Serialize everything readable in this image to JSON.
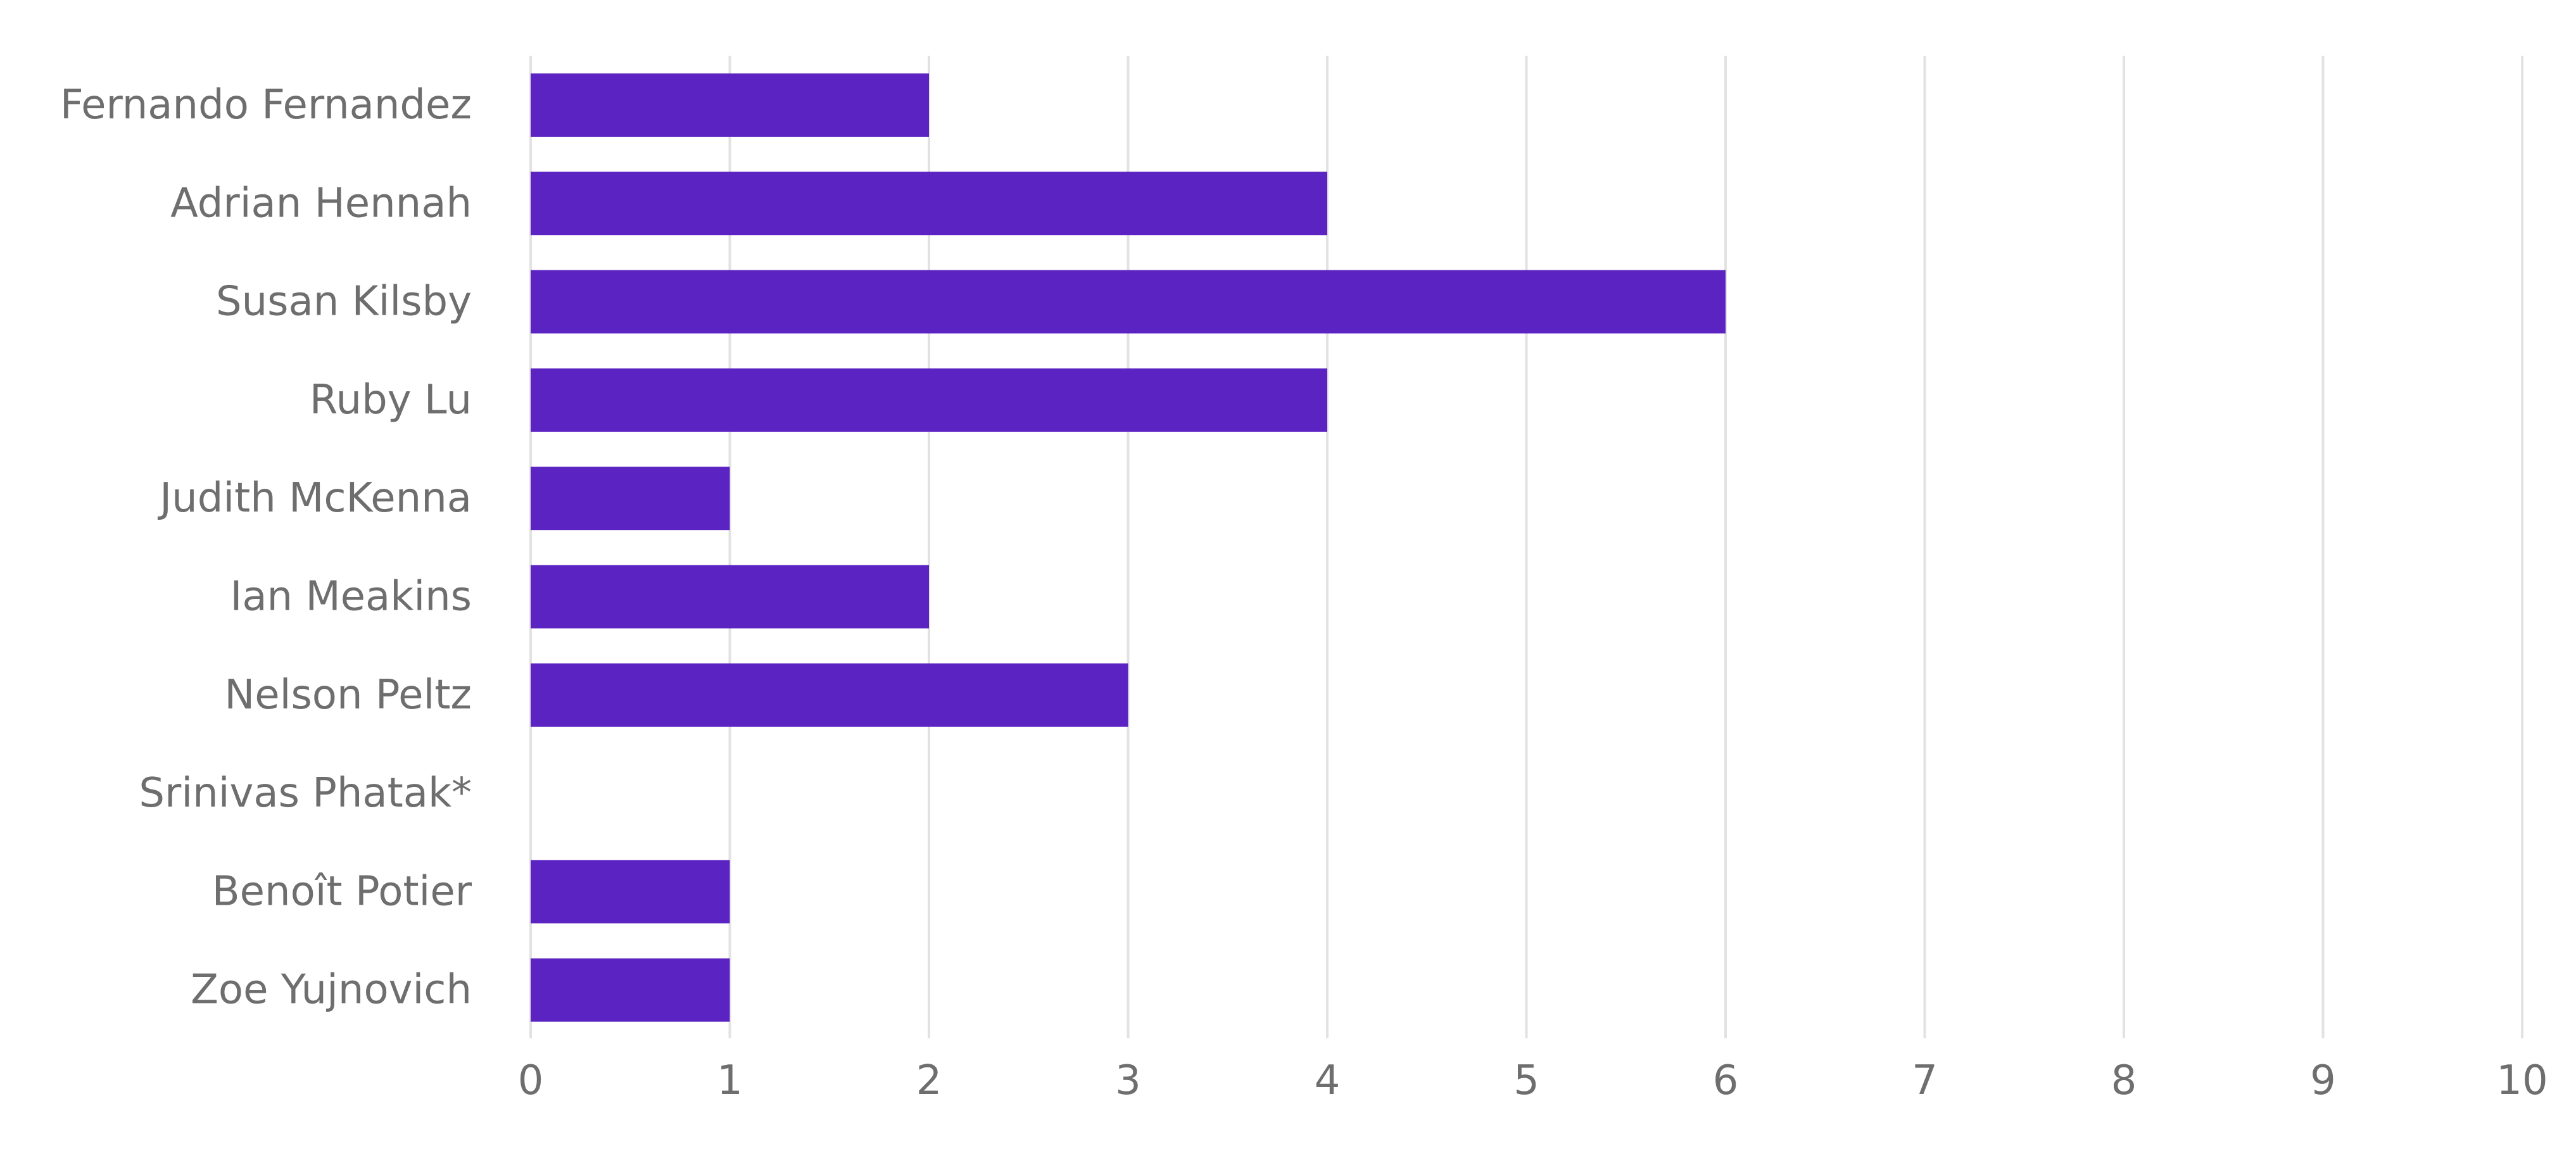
{
  "chart_data": {
    "type": "bar",
    "orientation": "horizontal",
    "title": "",
    "xlabel": "",
    "ylabel": "",
    "categories": [
      "Fernando Fernandez",
      "Adrian Hennah",
      "Susan Kilsby",
      "Ruby Lu",
      "Judith McKenna",
      "Ian Meakins",
      "Nelson Peltz",
      "Srinivas Phatak*",
      "Benoît Potier",
      "Zoe Yujnovich"
    ],
    "values": [
      2,
      4,
      6,
      4,
      1,
      2,
      3,
      0,
      1,
      1
    ],
    "xlim": [
      0,
      10
    ],
    "xticks": [
      0,
      1,
      2,
      3,
      4,
      5,
      6,
      7,
      8,
      9,
      10
    ],
    "grid": "vertical",
    "legend": "none",
    "colors": {
      "bar": "#5b23c1",
      "grid": "#e2e2e2",
      "text": "#6e6e6e"
    }
  }
}
